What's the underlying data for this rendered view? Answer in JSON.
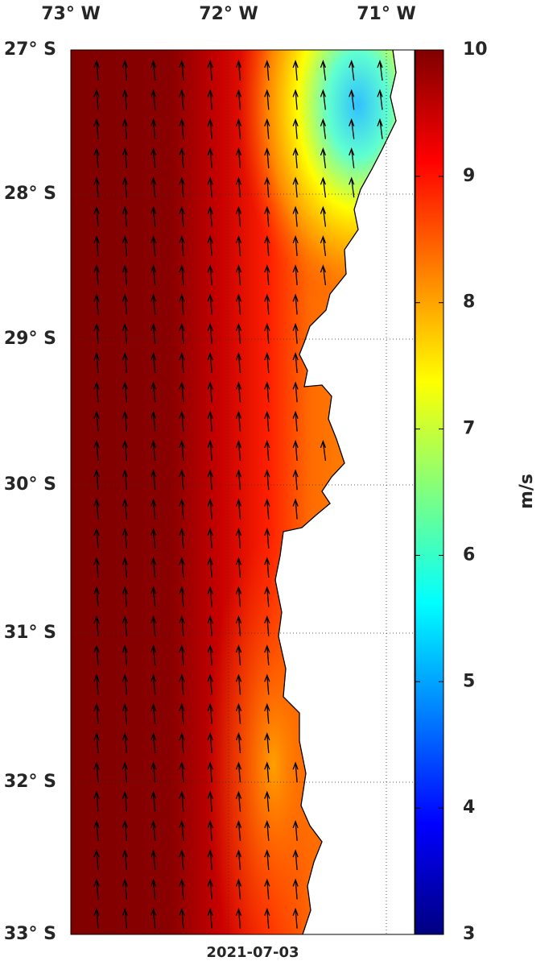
{
  "map": {
    "lon_labels": [
      "73° W",
      "72° W",
      "71° W"
    ],
    "lat_labels": [
      "27° S",
      "28° S",
      "29° S",
      "30° S",
      "31° S",
      "32° S",
      "33° S"
    ],
    "colorbar": {
      "lim": [
        3,
        10
      ],
      "ticks": [
        3,
        4,
        5,
        6,
        7,
        8,
        9,
        10
      ],
      "unit": "m/s"
    },
    "date": "2021-07-03"
  }
}
